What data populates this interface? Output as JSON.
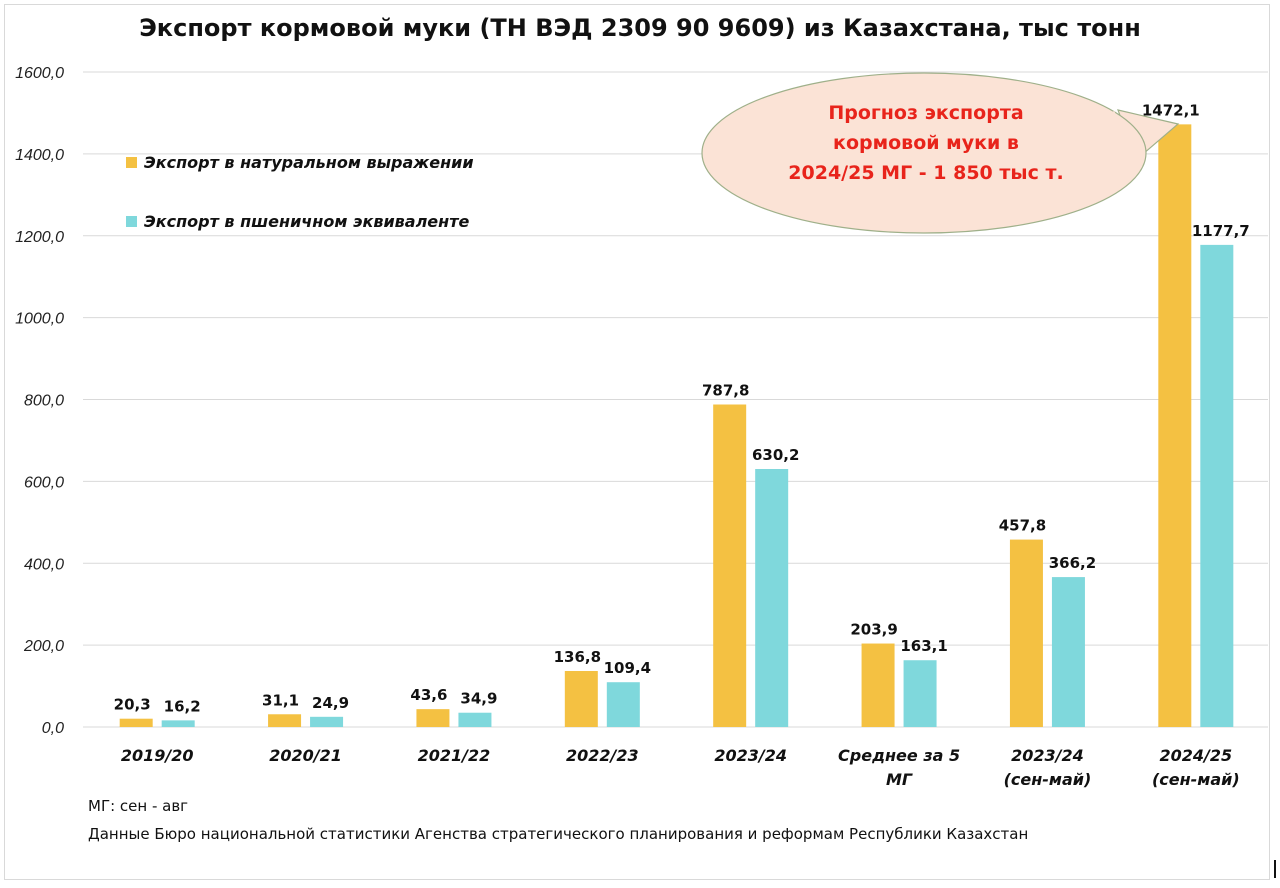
{
  "chart_data": {
    "type": "bar",
    "title": "Экспорт кормовой муки (ТН ВЭД 2309 90 9609) из Казахстана, тыс тонн",
    "categories": [
      [
        "2019/20"
      ],
      [
        "2020/21"
      ],
      [
        "2021/22"
      ],
      [
        "2022/23"
      ],
      [
        "2023/24"
      ],
      [
        "Среднее за 5",
        "МГ"
      ],
      [
        "2023/24",
        "(сен-май)"
      ],
      [
        "2024/25",
        "(сен-май)"
      ]
    ],
    "series": [
      {
        "name": "Экспорт в натуральном выражении",
        "color": "#f4c142",
        "values": [
          20.3,
          31.1,
          43.6,
          136.8,
          787.8,
          203.9,
          457.8,
          1472.1
        ],
        "labels": [
          "20,3",
          "31,1",
          "43,6",
          "136,8",
          "787,8",
          "203,9",
          "457,8",
          "1472,1"
        ]
      },
      {
        "name": "Экспорт в пшеничном эквиваленте",
        "color": "#7fd8dc",
        "values": [
          16.2,
          24.9,
          34.9,
          109.4,
          630.2,
          163.1,
          366.2,
          1177.7
        ],
        "labels": [
          "16,2",
          "24,9",
          "34,9",
          "109,4",
          "630,2",
          "163,1",
          "366,2",
          "1177,7"
        ]
      }
    ],
    "y_ticks": [
      "0,0",
      "200,0",
      "400,0",
      "600,0",
      "800,0",
      "1000,0",
      "1200,0",
      "1400,0",
      "1600,0"
    ],
    "ylim": [
      0,
      1600
    ],
    "grid": true,
    "legend_position": "top-left",
    "annotation": {
      "lines": [
        "Прогноз экспорта",
        "кормовой муки в",
        "2024/25 МГ - 1 850 тыс т."
      ],
      "fill": "#fbe3d6",
      "text_color": "#e8241b"
    }
  },
  "notes": {
    "season": "МГ: сен - авг",
    "source": "Данные Бюро национальной статистики Агенства стратегического планирования и реформам Республики Казахстан"
  }
}
